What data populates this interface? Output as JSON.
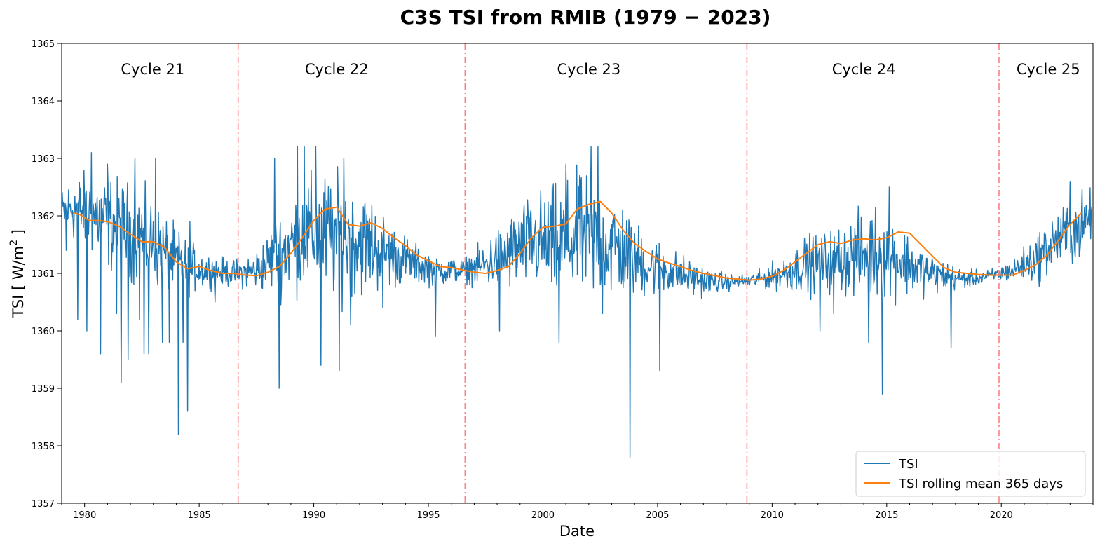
{
  "chart_data": {
    "type": "line",
    "title": "C3S TSI from RMIB (1979 − 2023)",
    "xlabel": "Date",
    "ylabel_main": "TSI [ W/m",
    "ylabel_sup": "2",
    "ylabel_end": " ]",
    "xlim": [
      1979.0,
      2024.0
    ],
    "ylim": [
      1357,
      1365
    ],
    "xticks": [
      1980,
      1985,
      1990,
      1995,
      2000,
      2005,
      2010,
      2015,
      2020
    ],
    "xtick_labels": [
      "1980",
      "1985",
      "1990",
      "1995",
      "2000",
      "2005",
      "2010",
      "2015",
      "2020"
    ],
    "yticks": [
      1357,
      1358,
      1359,
      1360,
      1361,
      1362,
      1363,
      1364,
      1365
    ],
    "ytick_labels": [
      "1357",
      "1358",
      "1359",
      "1360",
      "1361",
      "1362",
      "1363",
      "1364",
      "1365"
    ],
    "cycle_boundaries": [
      1986.7,
      1996.6,
      2008.9,
      2019.9
    ],
    "cycles": [
      {
        "label": "Cycle 21",
        "x": 1982.97
      },
      {
        "label": "Cycle 22",
        "x": 1991.0
      },
      {
        "label": "Cycle 23",
        "x": 2002.0
      },
      {
        "label": "Cycle 24",
        "x": 2014.0
      },
      {
        "label": "Cycle 25",
        "x": 2022.05
      }
    ],
    "series": [
      {
        "name": "TSI",
        "color": "#1f77b4",
        "envelope": {
          "x": [
            1979.0,
            1979.5,
            1980.5,
            1981.5,
            1982.5,
            1983.5,
            1984.5,
            1985.5,
            1986.5,
            1987.5,
            1988.5,
            1989.5,
            1990.5,
            1991.5,
            1992.5,
            1993.5,
            1994.5,
            1995.5,
            1996.5,
            1997.5,
            1998.5,
            1999.5,
            2000.5,
            2001.5,
            2002.5,
            2003.5,
            2004.5,
            2005.5,
            2006.5,
            2007.5,
            2008.5,
            2009.5,
            2010.5,
            2011.5,
            2012.5,
            2013.5,
            2014.5,
            2015.5,
            2016.5,
            2017.5,
            2018.5,
            2019.5,
            2020.5,
            2021.5,
            2022.5,
            2023.5,
            2023.95
          ],
          "upper": [
            1362.6,
            1362.9,
            1363.0,
            1362.9,
            1362.7,
            1362.2,
            1361.7,
            1361.4,
            1361.3,
            1361.5,
            1362.3,
            1362.9,
            1363.1,
            1362.9,
            1362.6,
            1362.0,
            1361.6,
            1361.4,
            1361.3,
            1361.7,
            1362.2,
            1362.6,
            1362.8,
            1363.0,
            1362.9,
            1362.5,
            1361.9,
            1361.6,
            1361.3,
            1361.1,
            1361.0,
            1361.1,
            1361.4,
            1361.8,
            1361.9,
            1362.2,
            1362.4,
            1362.1,
            1361.6,
            1361.3,
            1361.1,
            1361.1,
            1361.3,
            1361.8,
            1362.3,
            1362.6,
            1362.6
          ],
          "lower": [
            1361.5,
            1361.4,
            1361.0,
            1360.7,
            1360.6,
            1360.5,
            1360.5,
            1360.7,
            1360.7,
            1360.6,
            1360.4,
            1360.4,
            1360.2,
            1360.3,
            1360.4,
            1360.6,
            1360.7,
            1360.7,
            1360.8,
            1360.6,
            1360.5,
            1360.5,
            1360.2,
            1360.2,
            1360.2,
            1360.3,
            1360.4,
            1360.5,
            1360.5,
            1360.6,
            1360.7,
            1360.7,
            1360.6,
            1360.5,
            1360.5,
            1360.4,
            1360.3,
            1360.4,
            1360.5,
            1360.6,
            1360.7,
            1360.8,
            1360.8,
            1360.7,
            1360.9,
            1361.0,
            1361.5
          ]
        },
        "spikes": [
          {
            "x": 1979.2,
            "y": 1361.4
          },
          {
            "x": 1979.7,
            "y": 1360.2
          },
          {
            "x": 1980.1,
            "y": 1360.0
          },
          {
            "x": 1980.3,
            "y": 1363.1
          },
          {
            "x": 1980.7,
            "y": 1359.6
          },
          {
            "x": 1981.0,
            "y": 1362.9
          },
          {
            "x": 1981.4,
            "y": 1360.3
          },
          {
            "x": 1981.6,
            "y": 1359.1
          },
          {
            "x": 1981.9,
            "y": 1359.5
          },
          {
            "x": 1982.2,
            "y": 1363.0
          },
          {
            "x": 1982.4,
            "y": 1360.2
          },
          {
            "x": 1982.6,
            "y": 1359.6
          },
          {
            "x": 1982.8,
            "y": 1359.6
          },
          {
            "x": 1983.1,
            "y": 1363.0
          },
          {
            "x": 1983.4,
            "y": 1359.8
          },
          {
            "x": 1983.7,
            "y": 1359.8
          },
          {
            "x": 1984.1,
            "y": 1358.2
          },
          {
            "x": 1984.3,
            "y": 1359.8
          },
          {
            "x": 1984.5,
            "y": 1358.6
          },
          {
            "x": 1984.6,
            "y": 1361.9
          },
          {
            "x": 1985.7,
            "y": 1360.5
          },
          {
            "x": 1988.3,
            "y": 1363.0
          },
          {
            "x": 1988.5,
            "y": 1359.0
          },
          {
            "x": 1989.3,
            "y": 1363.2
          },
          {
            "x": 1989.6,
            "y": 1363.2
          },
          {
            "x": 1990.1,
            "y": 1363.2
          },
          {
            "x": 1990.3,
            "y": 1359.4
          },
          {
            "x": 1991.1,
            "y": 1359.3
          },
          {
            "x": 1991.3,
            "y": 1363.0
          },
          {
            "x": 1991.6,
            "y": 1360.1
          },
          {
            "x": 1993.0,
            "y": 1360.4
          },
          {
            "x": 1995.3,
            "y": 1359.9
          },
          {
            "x": 1998.1,
            "y": 1360.0
          },
          {
            "x": 2000.7,
            "y": 1359.8
          },
          {
            "x": 2001.0,
            "y": 1362.9
          },
          {
            "x": 2001.6,
            "y": 1362.7
          },
          {
            "x": 2002.1,
            "y": 1363.2
          },
          {
            "x": 2002.4,
            "y": 1363.2
          },
          {
            "x": 2002.6,
            "y": 1360.3
          },
          {
            "x": 2003.8,
            "y": 1357.8
          },
          {
            "x": 2004.0,
            "y": 1361.7
          },
          {
            "x": 2005.1,
            "y": 1359.3
          },
          {
            "x": 2012.1,
            "y": 1360.0
          },
          {
            "x": 2012.7,
            "y": 1360.3
          },
          {
            "x": 2014.2,
            "y": 1359.8
          },
          {
            "x": 2014.8,
            "y": 1358.9
          },
          {
            "x": 2015.1,
            "y": 1362.5
          },
          {
            "x": 2017.8,
            "y": 1359.7
          },
          {
            "x": 2023.0,
            "y": 1362.6
          }
        ]
      },
      {
        "name": "TSI rolling mean 365 days",
        "color": "#ff7f0e",
        "x": [
          1979.5,
          1979.8,
          1980.2,
          1980.6,
          1981.0,
          1981.5,
          1982.0,
          1982.5,
          1983.0,
          1983.5,
          1984.0,
          1984.5,
          1985.0,
          1985.5,
          1986.0,
          1986.5,
          1987.0,
          1987.5,
          1988.0,
          1988.5,
          1989.0,
          1989.5,
          1990.0,
          1990.5,
          1991.0,
          1991.5,
          1992.0,
          1992.5,
          1993.0,
          1993.5,
          1994.0,
          1994.5,
          1995.0,
          1995.5,
          1996.0,
          1996.5,
          1997.0,
          1997.5,
          1998.0,
          1998.5,
          1999.0,
          1999.5,
          2000.0,
          2000.5,
          2001.0,
          2001.5,
          2002.0,
          2002.5,
          2003.0,
          2003.5,
          2004.0,
          2004.5,
          2005.0,
          2005.5,
          2006.0,
          2006.5,
          2007.0,
          2007.5,
          2008.0,
          2008.5,
          2009.0,
          2009.5,
          2010.0,
          2010.5,
          2011.0,
          2011.5,
          2012.0,
          2012.5,
          2013.0,
          2013.5,
          2014.0,
          2014.5,
          2015.0,
          2015.5,
          2016.0,
          2016.5,
          2017.0,
          2017.5,
          2018.0,
          2018.5,
          2019.0,
          2019.5,
          2020.0,
          2020.5,
          2021.0,
          2021.5,
          2022.0,
          2022.5,
          2023.0,
          2023.5
        ],
        "y": [
          1362.05,
          1362.02,
          1361.92,
          1361.92,
          1361.9,
          1361.82,
          1361.68,
          1361.55,
          1361.55,
          1361.45,
          1361.2,
          1361.08,
          1361.12,
          1361.05,
          1361.0,
          1361.0,
          1360.97,
          1360.96,
          1361.02,
          1361.12,
          1361.35,
          1361.62,
          1361.92,
          1362.12,
          1362.15,
          1361.85,
          1361.82,
          1361.88,
          1361.78,
          1361.62,
          1361.48,
          1361.32,
          1361.22,
          1361.12,
          1361.1,
          1361.06,
          1361.02,
          1361.0,
          1361.05,
          1361.12,
          1361.35,
          1361.62,
          1361.8,
          1361.82,
          1361.86,
          1362.12,
          1362.2,
          1362.25,
          1362.05,
          1361.75,
          1361.52,
          1361.38,
          1361.25,
          1361.18,
          1361.12,
          1361.05,
          1361.0,
          1360.96,
          1360.92,
          1360.9,
          1360.88,
          1360.9,
          1360.95,
          1361.05,
          1361.2,
          1361.35,
          1361.5,
          1361.55,
          1361.52,
          1361.58,
          1361.6,
          1361.58,
          1361.62,
          1361.72,
          1361.7,
          1361.5,
          1361.3,
          1361.1,
          1361.02,
          1361.0,
          1360.98,
          1360.97,
          1360.97,
          1360.97,
          1361.05,
          1361.15,
          1361.32,
          1361.58,
          1361.85,
          1362.05
        ]
      }
    ],
    "legend": {
      "position": "lower-right",
      "entries": [
        "TSI",
        "TSI rolling mean 365 days"
      ]
    },
    "boundary_color": "#ff8080"
  }
}
